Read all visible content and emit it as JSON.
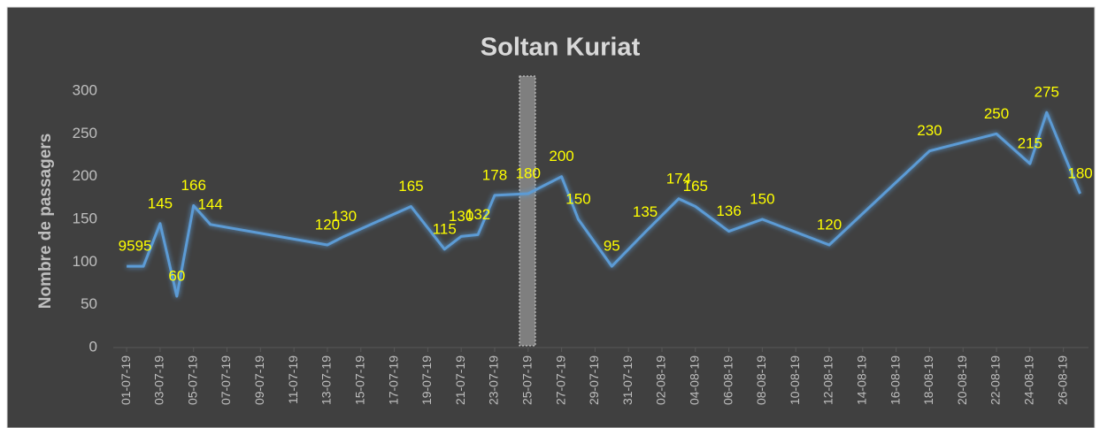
{
  "chart_data": {
    "type": "line",
    "title": "Soltan Kuriat",
    "y_label": "Nombre de passagers",
    "x": [
      "01-07-19",
      "02-07-19",
      "03-07-19",
      "04-07-19",
      "05-07-19",
      "06-07-19",
      "13-07-19",
      "14-07-19",
      "18-07-19",
      "20-07-19",
      "21-07-19",
      "22-07-19",
      "23-07-19",
      "25-07-19",
      "27-07-19",
      "28-07-19",
      "30-07-19",
      "01-08-19",
      "03-08-19",
      "04-08-19",
      "06-08-19",
      "08-08-19",
      "12-08-19",
      "18-08-19",
      "22-08-19",
      "24-08-19",
      "25-08-19",
      "27-08-19"
    ],
    "values": [
      95,
      95,
      145,
      60,
      166,
      144,
      120,
      130,
      165,
      115,
      130,
      132,
      178,
      180,
      200,
      150,
      95,
      135,
      174,
      165,
      136,
      150,
      120,
      230,
      250,
      215,
      275,
      180
    ],
    "color": "#5b9bd5",
    "label_color": "#ffff00",
    "xlim": [
      "01-07-19",
      "27-08-19"
    ],
    "xticks": [
      "01-07-19",
      "03-07-19",
      "05-07-19",
      "07-07-19",
      "09-07-19",
      "11-07-19",
      "13-07-19",
      "15-07-19",
      "17-07-19",
      "19-07-19",
      "21-07-19",
      "23-07-19",
      "25-07-19",
      "27-07-19",
      "29-07-19",
      "31-07-19",
      "02-08-19",
      "04-08-19",
      "06-08-19",
      "08-08-19",
      "10-08-19",
      "12-08-19",
      "14-08-19",
      "16-08-19",
      "18-08-19",
      "20-08-19",
      "22-08-19",
      "24-08-19",
      "26-08-19"
    ],
    "ylim": [
      0,
      300
    ],
    "yticks": [
      0,
      50,
      100,
      150,
      200,
      250,
      300
    ],
    "grid": false
  }
}
